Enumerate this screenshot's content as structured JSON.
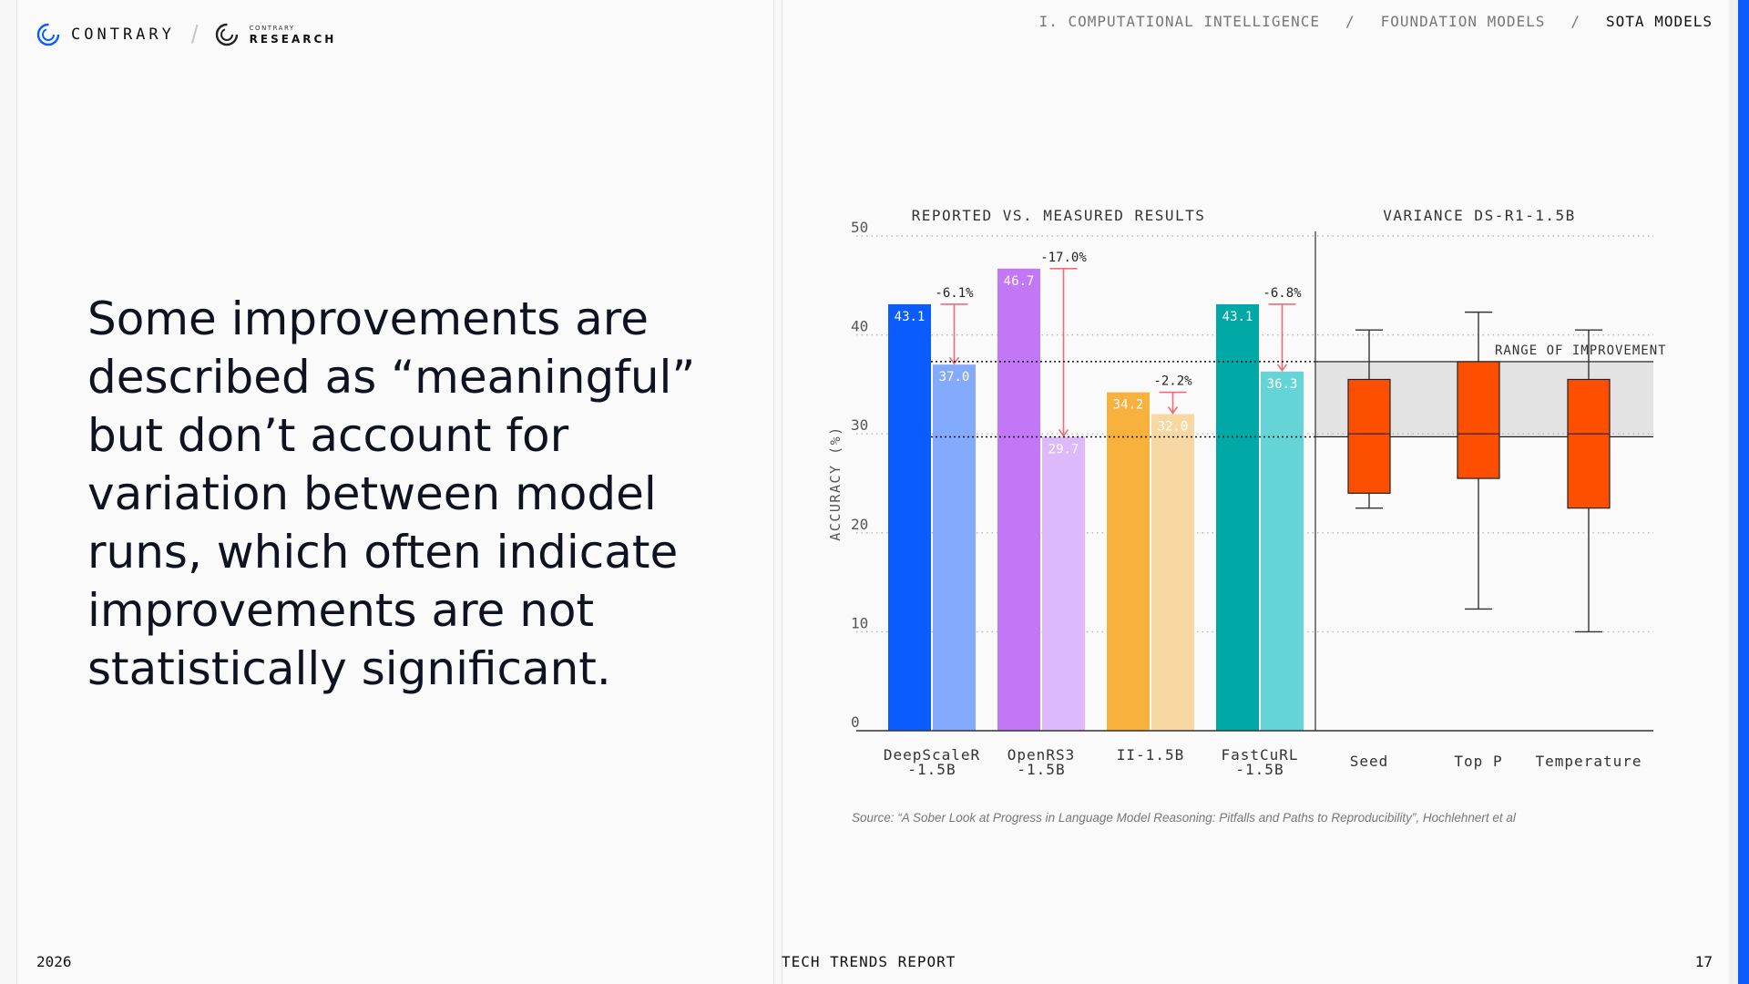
{
  "header": {
    "brand": "CONTRARY",
    "sub_small": "CONTRARY",
    "sub_big": "RESEARCH",
    "breadcrumb": [
      "I. COMPUTATIONAL INTELLIGENCE",
      "/",
      "FOUNDATION MODELS",
      "/",
      "SOTA MODELS"
    ]
  },
  "headline": "Some improvements are described as “meaningful” but don’t account for variation between model runs, which often indicate improvements are not statistically significant.",
  "footer": {
    "year": "2026",
    "title": "TECH TRENDS REPORT",
    "page": "17"
  },
  "source": "Source: “A Sober Look at Progress in Language Model Reasoning: Pitfalls and Paths to Reproducibility”, Hochlehnert et al",
  "colors": {
    "accent": "#0a5cff"
  },
  "chart_data": [
    {
      "type": "bar",
      "title": "REPORTED VS. MEASURED RESULTS",
      "ylabel": "ACCURACY (%)",
      "ylim": [
        0,
        50
      ],
      "yticks": [
        0,
        10,
        20,
        30,
        40,
        50
      ],
      "grid": true,
      "categories": [
        "DeepScaleR\n-1.5B",
        "OpenRS3\n-1.5B",
        "II-1.5B",
        "FastCuRL\n-1.5B"
      ],
      "series": [
        {
          "values": [
            43.1,
            46.7,
            34.2,
            43.1
          ],
          "colors": [
            "#0a5cff",
            "#c277f7",
            "#f8b13d",
            "#00a8a6"
          ]
        },
        {
          "values": [
            37.0,
            29.7,
            32.0,
            36.3
          ],
          "colors": [
            "#84aafd",
            "#ddb8fa",
            "#f8d8a2",
            "#64d4d6"
          ]
        }
      ],
      "value_labels": [
        [
          "43.1",
          "46.7",
          "34.2",
          "43.1"
        ],
        [
          "37.0",
          "29.7",
          "32.0",
          "36.3"
        ]
      ],
      "deltas": [
        "-6.1%",
        "-17.0%",
        "-2.2%",
        "-6.8%"
      ],
      "reference_lines": [
        37.3,
        29.7
      ]
    },
    {
      "type": "box",
      "title": "VARIANCE DS-R1-1.5B",
      "categories": [
        "Seed",
        "Top P",
        "Temperature"
      ],
      "boxes": [
        {
          "min": 22.5,
          "q1": 24.0,
          "median": 30.0,
          "q3": 35.5,
          "max": 40.5
        },
        {
          "min": 12.3,
          "q1": 25.5,
          "median": 30.0,
          "q3": 37.3,
          "max": 42.3
        },
        {
          "min": 10.0,
          "q1": 22.5,
          "median": 30.0,
          "q3": 35.5,
          "max": 40.5
        }
      ],
      "box_color": "#fc5000",
      "range_band": {
        "label": "RANGE OF IMPROVEMENT",
        "low": 29.7,
        "high": 37.3
      }
    }
  ]
}
